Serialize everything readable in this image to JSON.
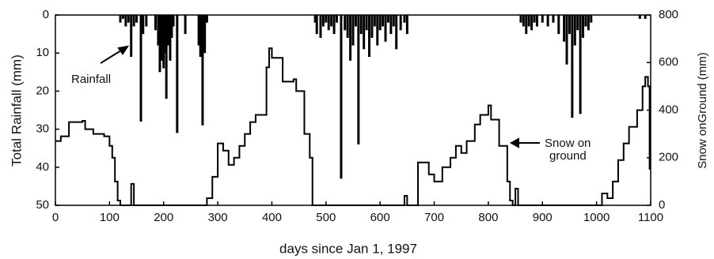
{
  "chart_data": {
    "type": "combo",
    "x_label": "days since Jan 1, 1997",
    "y_label": "Total Rainfall (mm)",
    "y2_label": "Snow onGround (mm)",
    "xlim": [
      0,
      1100
    ],
    "xticks": [
      0,
      100,
      200,
      300,
      400,
      500,
      600,
      700,
      800,
      900,
      1000,
      1100
    ],
    "ylim": [
      50,
      0
    ],
    "yticks": [
      0,
      10,
      20,
      30,
      40,
      50
    ],
    "y2lim": [
      0,
      800
    ],
    "y2ticks": [
      0,
      200,
      400,
      600,
      800
    ],
    "annotations": [
      {
        "text": "Rainfall"
      },
      {
        "text": "Snow on"
      },
      {
        "text": "ground"
      }
    ],
    "series": [
      {
        "kind": "bar",
        "axis": "y",
        "color": "#000",
        "x": [
          120,
          125,
          130,
          135,
          140,
          145,
          150,
          158,
          162,
          168,
          185,
          190,
          193,
          196,
          200,
          203,
          205,
          208,
          212,
          215,
          218,
          225,
          240,
          265,
          268,
          272,
          276,
          280,
          480,
          483,
          490,
          495,
          500,
          505,
          510,
          515,
          520,
          528,
          535,
          540,
          545,
          550,
          555,
          560,
          565,
          570,
          575,
          580,
          585,
          590,
          595,
          600,
          605,
          610,
          615,
          620,
          625,
          630,
          638,
          645,
          650,
          860,
          865,
          870,
          875,
          880,
          885,
          890,
          900,
          910,
          920,
          930,
          940,
          945,
          950,
          955,
          960,
          965,
          970,
          975,
          980,
          985,
          990,
          1080,
          1090
        ],
        "values": [
          2,
          1,
          3,
          2,
          11,
          3,
          2,
          28,
          5,
          3,
          4,
          8,
          15,
          12,
          14,
          10,
          22,
          8,
          12,
          6,
          3,
          31,
          5,
          8,
          11,
          29,
          10,
          2,
          2,
          5,
          6,
          3,
          2,
          4,
          3,
          5,
          2,
          43,
          4,
          6,
          12,
          8,
          3,
          34,
          5,
          9,
          4,
          11,
          6,
          3,
          8,
          4,
          3,
          7,
          2,
          5,
          3,
          9,
          4,
          2,
          5,
          2,
          3,
          5,
          3,
          4,
          2,
          3,
          2,
          3,
          2,
          5,
          7,
          13,
          5,
          27,
          8,
          4,
          26,
          6,
          3,
          4,
          2,
          1,
          1
        ]
      },
      {
        "kind": "line",
        "axis": "y2",
        "color": "#000",
        "x": [
          0,
          10,
          25,
          50,
          55,
          70,
          90,
          100,
          105,
          110,
          115,
          120,
          135,
          140,
          145,
          270,
          280,
          290,
          300,
          310,
          320,
          330,
          340,
          350,
          360,
          370,
          380,
          390,
          395,
          400,
          420,
          440,
          445,
          460,
          470,
          475,
          640,
          645,
          650,
          670,
          690,
          700,
          715,
          730,
          740,
          750,
          760,
          775,
          785,
          800,
          805,
          820,
          835,
          840,
          845,
          850,
          855,
          1000,
          1010,
          1020,
          1030,
          1040,
          1050,
          1060,
          1075,
          1085,
          1090,
          1095,
          1098
        ],
        "values": [
          270,
          290,
          350,
          355,
          320,
          300,
          290,
          250,
          200,
          100,
          20,
          0,
          0,
          90,
          0,
          0,
          30,
          120,
          260,
          230,
          170,
          200,
          250,
          300,
          350,
          380,
          380,
          580,
          660,
          620,
          520,
          530,
          480,
          300,
          200,
          0,
          0,
          40,
          0,
          180,
          130,
          100,
          160,
          200,
          250,
          220,
          270,
          340,
          380,
          420,
          360,
          250,
          100,
          20,
          0,
          70,
          0,
          0,
          50,
          30,
          100,
          190,
          260,
          330,
          400,
          500,
          540,
          500,
          150
        ]
      }
    ]
  }
}
